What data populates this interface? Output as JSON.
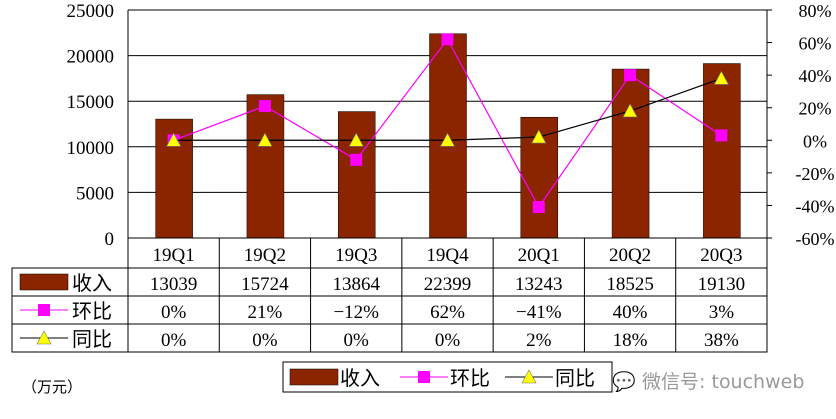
{
  "chart_data": {
    "type": "bar",
    "categories": [
      "19Q1",
      "19Q2",
      "19Q3",
      "19Q4",
      "20Q1",
      "20Q2",
      "20Q3"
    ],
    "series": [
      {
        "name": "收入",
        "type": "bar",
        "axis": "left",
        "color": "#8B2500",
        "values": [
          13039,
          15724,
          13864,
          22399,
          13243,
          18525,
          19130
        ],
        "labels": [
          "13039",
          "15724",
          "13864",
          "22399",
          "13243",
          "18525",
          "19130"
        ]
      },
      {
        "name": "环比",
        "type": "line",
        "axis": "right",
        "color": "#FF00FF",
        "marker": "square",
        "values": [
          0,
          21,
          -12,
          62,
          -41,
          40,
          3
        ],
        "labels": [
          "0%",
          "21%",
          "-12%",
          "62%",
          "-41%",
          "40%",
          "3%"
        ]
      },
      {
        "name": "同比",
        "type": "line",
        "axis": "right",
        "color": "#000000",
        "marker": "triangle",
        "marker_color": "#FFFF00",
        "values": [
          0,
          0,
          0,
          0,
          2,
          18,
          38
        ],
        "labels": [
          "0%",
          "0%",
          "0%",
          "0%",
          "2%",
          "18%",
          "38%"
        ]
      }
    ],
    "ylim_left": [
      0,
      25000
    ],
    "yticks_left": [
      "0",
      "5000",
      "10000",
      "15000",
      "20000",
      "25000"
    ],
    "ylim_right": [
      -60,
      80
    ],
    "yticks_right": [
      "-60%",
      "-40%",
      "-20%",
      "0%",
      "20%",
      "40%",
      "60%",
      "80%"
    ],
    "grid": true,
    "data_table": true,
    "legend": "bottom",
    "unit_note": "（万元）"
  },
  "watermark": "微信号: touchweb"
}
